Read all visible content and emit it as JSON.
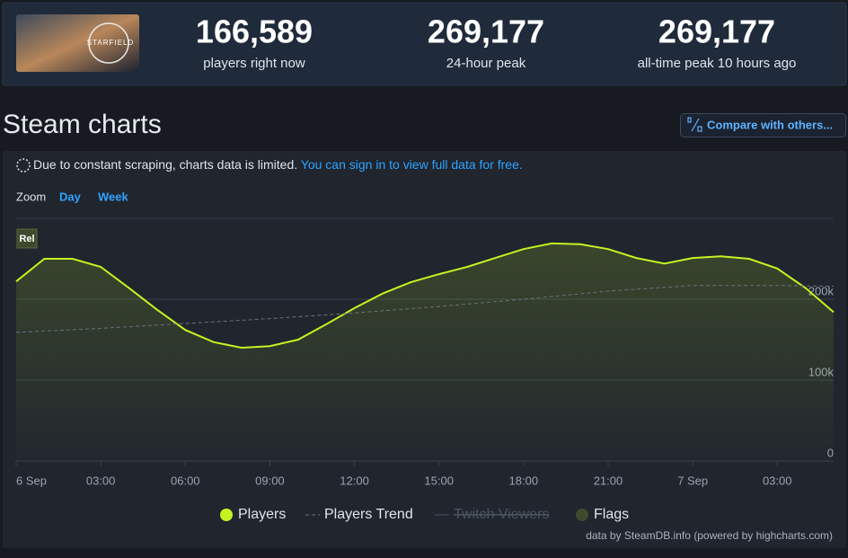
{
  "header": {
    "image_text": "STARFIELD",
    "stats": [
      {
        "value": "166,589",
        "label": "players right now"
      },
      {
        "value": "269,177",
        "label": "24-hour peak"
      },
      {
        "value": "269,177",
        "label": "all-time peak 10 hours ago"
      }
    ]
  },
  "title": "Steam charts",
  "compare_button": "Compare with others...",
  "notice": {
    "text": "Due to constant scraping, charts data is limited.",
    "link": "You can sign in to view full data for free."
  },
  "zoom": {
    "label": "Zoom",
    "options": [
      "Day",
      "Week"
    ]
  },
  "chart_data": {
    "type": "line",
    "xlim": [
      0,
      29
    ],
    "xticks": [
      {
        "value": 0,
        "label": "6 Sep"
      },
      {
        "value": 3,
        "label": "03:00"
      },
      {
        "value": 6,
        "label": "06:00"
      },
      {
        "value": 9,
        "label": "09:00"
      },
      {
        "value": 12,
        "label": "12:00"
      },
      {
        "value": 15,
        "label": "15:00"
      },
      {
        "value": 18,
        "label": "18:00"
      },
      {
        "value": 21,
        "label": "21:00"
      },
      {
        "value": 24,
        "label": "7 Sep"
      },
      {
        "value": 27,
        "label": "03:00"
      }
    ],
    "ylim": [
      0,
      300000
    ],
    "yticks": [
      {
        "value": 0,
        "label": "0"
      },
      {
        "value": 100000,
        "label": "100k"
      },
      {
        "value": 200000,
        "label": "200k"
      }
    ],
    "grid": true,
    "series": [
      {
        "name": "Players",
        "color": "#c4f321",
        "style": "solid",
        "x": [
          0,
          1,
          2,
          3,
          4,
          5,
          6,
          7,
          8,
          9,
          10,
          11,
          12,
          13,
          14,
          15,
          16,
          17,
          18,
          19,
          20,
          21,
          22,
          23,
          24,
          25,
          26,
          27,
          28,
          29
        ],
        "values": [
          222000,
          250000,
          250000,
          240000,
          214000,
          187000,
          162000,
          147000,
          140000,
          142000,
          150000,
          169000,
          189000,
          207000,
          221000,
          231000,
          240000,
          251000,
          262000,
          269000,
          268000,
          262000,
          251000,
          244000,
          251000,
          253000,
          250000,
          238000,
          214000,
          184000
        ]
      },
      {
        "name": "Players Trend",
        "color": "#6b727d",
        "style": "dashed",
        "x": [
          0,
          3,
          6,
          9,
          12,
          15,
          18,
          21,
          24,
          27,
          29
        ],
        "values": [
          159000,
          164000,
          170000,
          176000,
          183000,
          191000,
          200000,
          210000,
          217000,
          217000,
          216000
        ]
      },
      {
        "name": "Twitch Viewers",
        "color": "#4b5361",
        "style": "hidden",
        "x": [],
        "values": []
      }
    ],
    "flags": {
      "name": "Flags",
      "color": "#3e4a2c",
      "items": [
        {
          "x": 0,
          "label": "Rel"
        }
      ]
    },
    "credits": "data by SteamDB.info (powered by highcharts.com)"
  }
}
